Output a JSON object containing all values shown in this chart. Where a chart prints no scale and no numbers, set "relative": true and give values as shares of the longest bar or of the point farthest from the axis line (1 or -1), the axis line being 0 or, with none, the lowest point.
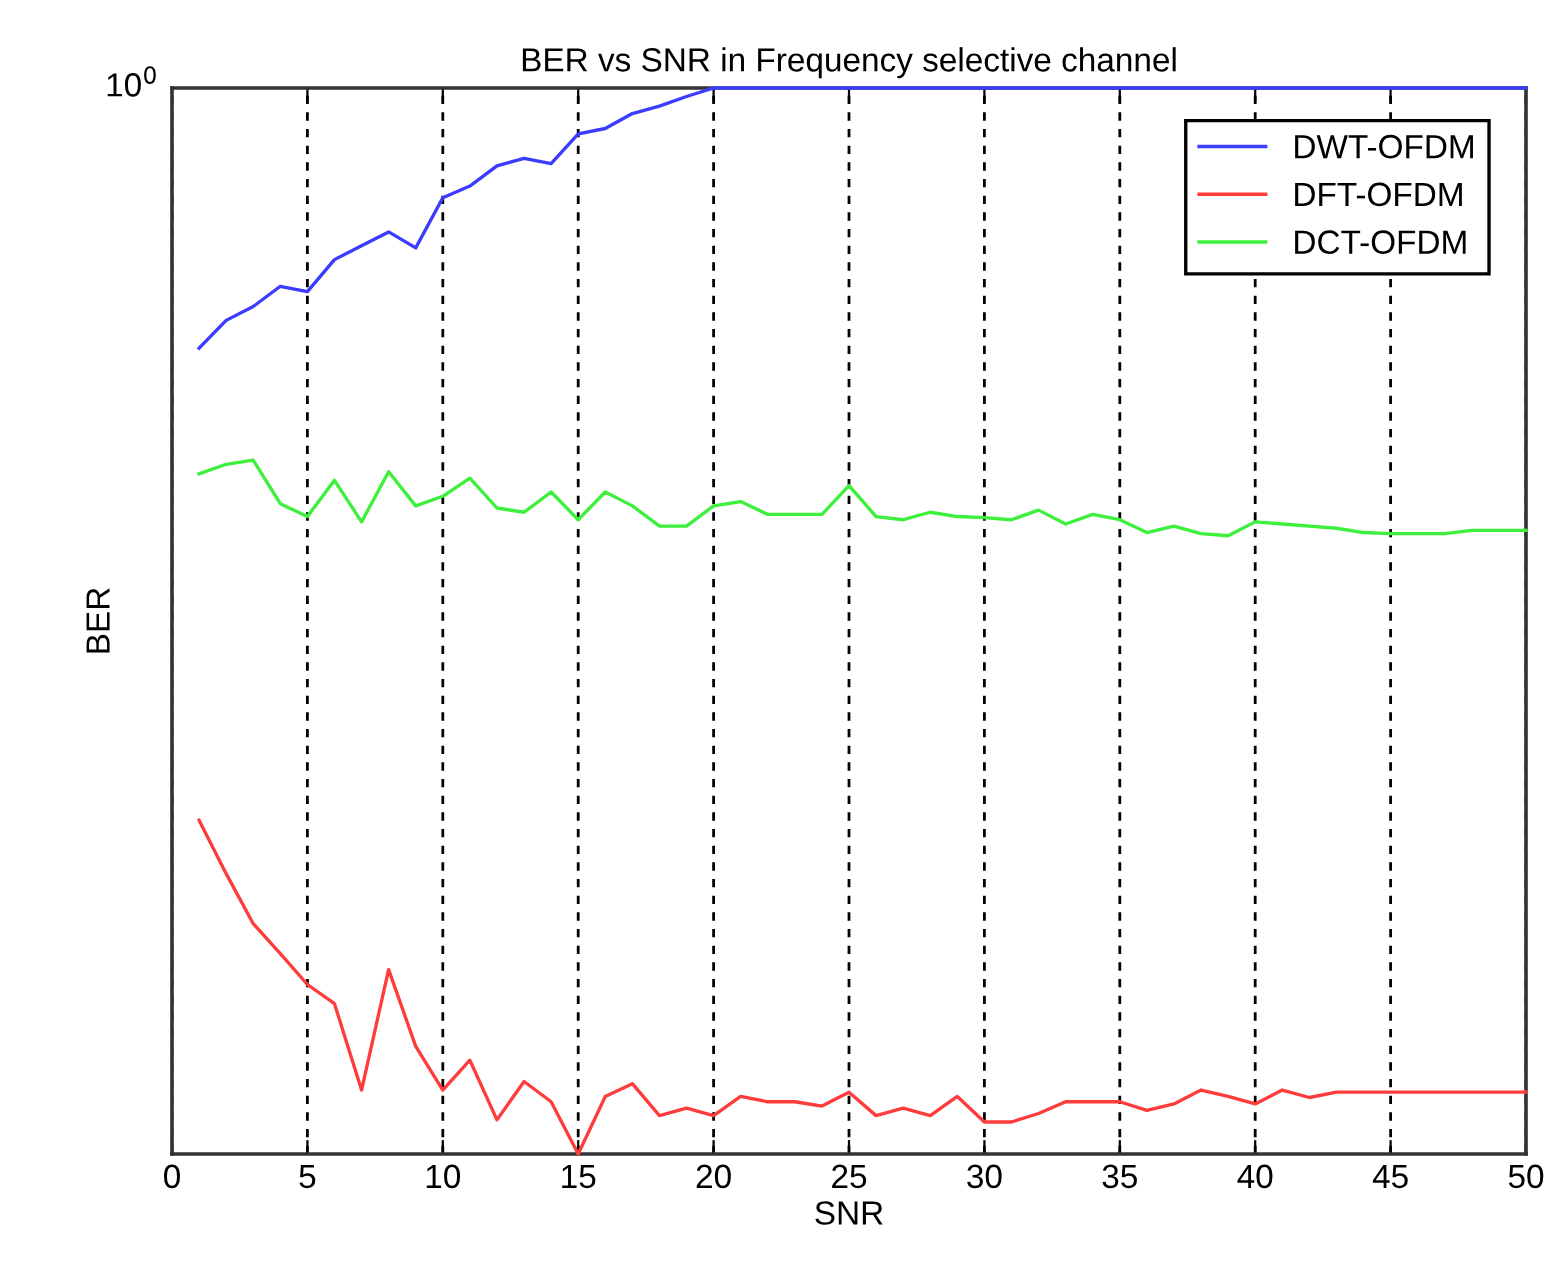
{
  "chart_data": {
    "type": "line",
    "title": "BER vs SNR in Frequency selective channel",
    "xlabel": "SNR",
    "ylabel": "BER",
    "annotations": [
      "10$^{0}$"
    ],
    "relative": true,
    "xlim": [
      0,
      50
    ],
    "xticks": [
      0,
      5,
      10,
      15,
      20,
      25,
      30,
      35,
      40,
      45,
      50
    ],
    "grid": "x",
    "legend": "top right",
    "line_style": "solid",
    "marker": "none",
    "x": [
      1,
      2,
      3,
      4,
      5,
      6,
      7,
      8,
      9,
      10,
      11,
      12,
      13,
      14,
      15,
      16,
      17,
      18,
      19,
      20,
      21,
      22,
      23,
      24,
      25,
      26,
      27,
      28,
      29,
      30,
      31,
      32,
      33,
      34,
      35,
      36,
      37,
      38,
      39,
      40,
      41,
      42,
      43,
      44,
      45,
      46,
      47,
      48,
      49,
      50
    ],
    "series": [
      {
        "name": "DWT-OFDM",
        "color": "#3c3cff",
        "values": [
          0.756,
          0.782,
          0.795,
          0.814,
          0.809,
          0.839,
          0.852,
          0.865,
          0.85,
          0.897,
          0.908,
          0.927,
          0.934,
          0.929,
          0.957,
          0.962,
          0.976,
          0.983,
          0.992,
          1,
          1,
          1,
          1,
          1,
          1,
          1,
          1,
          1,
          1,
          1,
          1,
          1,
          1,
          1,
          1,
          1,
          1,
          1,
          1,
          1,
          1,
          1,
          1,
          1,
          1,
          1,
          1,
          1,
          1,
          1
        ]
      },
      {
        "name": "DFT-OFDM",
        "color": "#ff3c3c",
        "values": [
          0.313,
          0.263,
          0.216,
          0.188,
          0.159,
          0.141,
          0.06,
          0.173,
          0.101,
          0.06,
          0.088,
          0.032,
          0.068,
          0.049,
          0,
          0.054,
          0.066,
          0.036,
          0.043,
          0.036,
          0.054,
          0.049,
          0.049,
          0.045,
          0.058,
          0.036,
          0.043,
          0.036,
          0.054,
          0.03,
          0.03,
          0.038,
          0.049,
          0.049,
          0.049,
          0.041,
          0.047,
          0.06,
          0.054,
          0.047,
          0.06,
          0.053,
          0.058,
          0.058,
          0.058,
          0.058,
          0.058,
          0.058,
          0.058,
          0.058
        ]
      },
      {
        "name": "DCT-OFDM",
        "color": "#3cf03c",
        "values": [
          0.638,
          0.647,
          0.651,
          0.61,
          0.598,
          0.632,
          0.593,
          0.64,
          0.608,
          0.617,
          0.634,
          0.606,
          0.602,
          0.621,
          0.595,
          0.621,
          0.608,
          0.589,
          0.589,
          0.608,
          0.612,
          0.6,
          0.6,
          0.6,
          0.627,
          0.598,
          0.595,
          0.602,
          0.598,
          0.597,
          0.595,
          0.604,
          0.591,
          0.6,
          0.595,
          0.583,
          0.589,
          0.582,
          0.58,
          0.593,
          0.591,
          0.589,
          0.587,
          0.583,
          0.582,
          0.582,
          0.582,
          0.585,
          0.585,
          0.585
        ]
      }
    ]
  }
}
